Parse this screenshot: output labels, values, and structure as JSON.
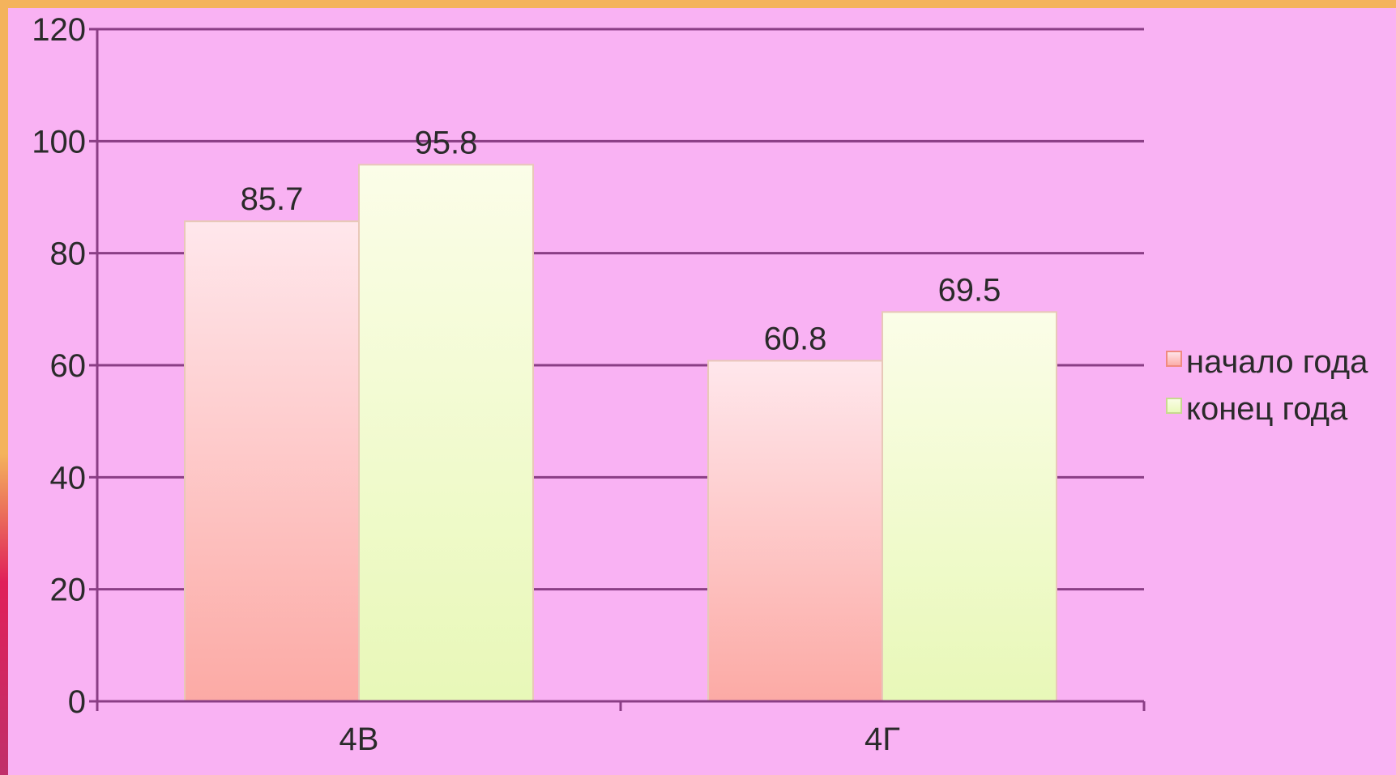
{
  "chart_data": {
    "type": "bar",
    "categories": [
      "4В",
      "4Г"
    ],
    "series": [
      {
        "name": "начало года",
        "values": [
          85.7,
          60.8
        ],
        "color_top": "#ffe7ec",
        "color_bottom": "#fcaaa5"
      },
      {
        "name": "конец года",
        "values": [
          95.8,
          69.5
        ],
        "color_top": "#fbfde8",
        "color_bottom": "#e8f8b8"
      }
    ],
    "ylim": [
      0,
      120
    ],
    "yticks": [
      0,
      20,
      40,
      60,
      80,
      100,
      120
    ],
    "grid": true,
    "legend_position": "right",
    "data_labels": true,
    "title": "",
    "xlabel": "",
    "ylabel": ""
  },
  "colors": {
    "background": "#f9b2f3",
    "frame": "#f4b35c",
    "gridline": "#8a3e85",
    "text": "#2a2a2a"
  }
}
